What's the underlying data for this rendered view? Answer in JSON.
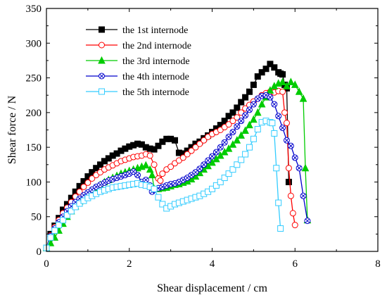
{
  "chart_data": {
    "type": "line",
    "xlabel": "Shear displacement / cm",
    "ylabel": "Shear force / N",
    "xlim": [
      0,
      8
    ],
    "ylim": [
      0,
      350
    ],
    "xticks": [
      0,
      2,
      4,
      6,
      8
    ],
    "yticks": [
      0,
      50,
      100,
      150,
      200,
      250,
      300,
      350
    ],
    "grid": false,
    "legend_position": "top-left",
    "series": [
      {
        "name": "the 1st internode",
        "color": "#000000",
        "marker": "filled-square",
        "x": [
          0.0,
          0.1,
          0.2,
          0.3,
          0.4,
          0.5,
          0.6,
          0.7,
          0.8,
          0.9,
          1.0,
          1.1,
          1.2,
          1.3,
          1.4,
          1.5,
          1.6,
          1.7,
          1.8,
          1.9,
          2.0,
          2.1,
          2.2,
          2.3,
          2.4,
          2.5,
          2.6,
          2.7,
          2.8,
          2.9,
          3.0,
          3.1,
          3.2,
          3.3,
          3.4,
          3.5,
          3.6,
          3.7,
          3.8,
          3.9,
          4.0,
          4.1,
          4.2,
          4.3,
          4.4,
          4.5,
          4.6,
          4.7,
          4.8,
          4.9,
          5.0,
          5.1,
          5.2,
          5.3,
          5.4,
          5.5,
          5.6,
          5.65,
          5.7,
          5.75,
          5.8,
          5.85
        ],
        "values": [
          5,
          25,
          37,
          48,
          60,
          68,
          77,
          86,
          94,
          101,
          108,
          114,
          120,
          125,
          130,
          134,
          138,
          141,
          145,
          148,
          151,
          153,
          155,
          154,
          150,
          148,
          147,
          152,
          158,
          162,
          162,
          160,
          142,
          141,
          145,
          150,
          155,
          158,
          163,
          167,
          172,
          177,
          182,
          188,
          195,
          200,
          207,
          215,
          222,
          230,
          240,
          252,
          258,
          263,
          270,
          265,
          258,
          256,
          255,
          240,
          235,
          100
        ]
      },
      {
        "name": "the 2nd internode",
        "color": "#ff0000",
        "marker": "open-circle",
        "x": [
          0.0,
          0.1,
          0.2,
          0.3,
          0.4,
          0.5,
          0.6,
          0.7,
          0.8,
          0.9,
          1.0,
          1.1,
          1.2,
          1.3,
          1.4,
          1.5,
          1.6,
          1.7,
          1.8,
          1.9,
          2.0,
          2.1,
          2.2,
          2.3,
          2.4,
          2.5,
          2.6,
          2.7,
          2.75,
          2.8,
          2.9,
          3.0,
          3.1,
          3.2,
          3.3,
          3.4,
          3.5,
          3.6,
          3.7,
          3.8,
          3.9,
          4.0,
          4.1,
          4.2,
          4.3,
          4.4,
          4.5,
          4.6,
          4.7,
          4.8,
          4.9,
          5.0,
          5.1,
          5.2,
          5.3,
          5.4,
          5.5,
          5.6,
          5.7,
          5.75,
          5.8,
          5.85,
          5.9,
          5.95,
          6.0
        ],
        "values": [
          5,
          23,
          35,
          45,
          55,
          63,
          71,
          79,
          86,
          93,
          99,
          105,
          110,
          114,
          118,
          121,
          124,
          127,
          130,
          132,
          134,
          136,
          137,
          138,
          140,
          138,
          125,
          105,
          102,
          112,
          118,
          122,
          127,
          131,
          135,
          140,
          145,
          150,
          155,
          160,
          165,
          169,
          172,
          175,
          179,
          183,
          188,
          193,
          200,
          206,
          211,
          216,
          220,
          225,
          228,
          230,
          229,
          231,
          230,
          200,
          185,
          120,
          80,
          55,
          38
        ]
      },
      {
        "name": "the 3rd internode",
        "color": "#00cc00",
        "marker": "filled-triangle",
        "x": [
          0.0,
          0.1,
          0.2,
          0.3,
          0.4,
          0.5,
          0.6,
          0.7,
          0.8,
          0.9,
          1.0,
          1.1,
          1.2,
          1.3,
          1.4,
          1.5,
          1.6,
          1.7,
          1.8,
          1.9,
          2.0,
          2.1,
          2.2,
          2.3,
          2.4,
          2.5,
          2.55,
          2.6,
          2.7,
          2.8,
          2.9,
          3.0,
          3.1,
          3.2,
          3.3,
          3.4,
          3.5,
          3.6,
          3.7,
          3.8,
          3.9,
          4.0,
          4.1,
          4.2,
          4.3,
          4.4,
          4.5,
          4.6,
          4.7,
          4.8,
          4.9,
          5.0,
          5.1,
          5.2,
          5.3,
          5.4,
          5.5,
          5.6,
          5.7,
          5.8,
          5.9,
          6.0,
          6.1,
          6.2,
          6.25,
          6.3
        ],
        "values": [
          5,
          12,
          20,
          30,
          40,
          50,
          58,
          65,
          72,
          78,
          83,
          88,
          92,
          96,
          100,
          103,
          106,
          109,
          112,
          114,
          116,
          118,
          120,
          122,
          124,
          118,
          110,
          90,
          90,
          91,
          92,
          94,
          96,
          97,
          99,
          101,
          104,
          108,
          113,
          118,
          123,
          128,
          133,
          138,
          143,
          148,
          154,
          160,
          167,
          174,
          182,
          190,
          200,
          212,
          222,
          232,
          238,
          242,
          244,
          238,
          244,
          240,
          230,
          220,
          120,
          45
        ]
      },
      {
        "name": "the 4th internode",
        "color": "#0000cc",
        "marker": "crossed-circle",
        "x": [
          0.0,
          0.1,
          0.2,
          0.3,
          0.4,
          0.5,
          0.6,
          0.7,
          0.8,
          0.9,
          1.0,
          1.1,
          1.2,
          1.3,
          1.4,
          1.5,
          1.6,
          1.7,
          1.8,
          1.9,
          2.0,
          2.1,
          2.2,
          2.3,
          2.4,
          2.5,
          2.55,
          2.6,
          2.7,
          2.8,
          2.9,
          3.0,
          3.1,
          3.2,
          3.3,
          3.4,
          3.5,
          3.6,
          3.7,
          3.8,
          3.9,
          4.0,
          4.1,
          4.2,
          4.3,
          4.4,
          4.5,
          4.6,
          4.7,
          4.8,
          4.9,
          5.0,
          5.1,
          5.2,
          5.3,
          5.4,
          5.5,
          5.6,
          5.7,
          5.8,
          5.9,
          6.0,
          6.1,
          6.2,
          6.3
        ],
        "values": [
          5,
          22,
          33,
          42,
          50,
          58,
          65,
          71,
          76,
          81,
          85,
          89,
          93,
          96,
          99,
          102,
          104,
          106,
          108,
          110,
          112,
          115,
          110,
          100,
          103,
          95,
          86,
          89,
          91,
          93,
          95,
          97,
          98,
          100,
          103,
          106,
          110,
          114,
          119,
          125,
          131,
          137,
          143,
          150,
          157,
          165,
          172,
          180,
          188,
          196,
          204,
          212,
          220,
          224,
          225,
          222,
          212,
          195,
          178,
          160,
          152,
          135,
          120,
          80,
          44
        ]
      },
      {
        "name": "the 5th internode",
        "color": "#33ccff",
        "marker": "open-square",
        "x": [
          0.0,
          0.1,
          0.2,
          0.3,
          0.4,
          0.5,
          0.6,
          0.7,
          0.8,
          0.9,
          1.0,
          1.1,
          1.2,
          1.3,
          1.4,
          1.5,
          1.6,
          1.7,
          1.8,
          1.9,
          2.0,
          2.1,
          2.2,
          2.3,
          2.4,
          2.5,
          2.6,
          2.7,
          2.8,
          2.9,
          3.0,
          3.1,
          3.2,
          3.3,
          3.4,
          3.5,
          3.6,
          3.7,
          3.8,
          3.9,
          4.0,
          4.1,
          4.2,
          4.3,
          4.4,
          4.5,
          4.6,
          4.7,
          4.8,
          4.9,
          5.0,
          5.1,
          5.2,
          5.3,
          5.4,
          5.45,
          5.5,
          5.55,
          5.6,
          5.65
        ],
        "values": [
          5,
          20,
          30,
          38,
          45,
          52,
          58,
          64,
          69,
          73,
          77,
          80,
          83,
          86,
          88,
          90,
          92,
          93,
          94,
          95,
          96,
          97,
          98,
          96,
          95,
          93,
          90,
          78,
          68,
          62,
          65,
          68,
          70,
          72,
          74,
          76,
          78,
          80,
          83,
          86,
          90,
          95,
          100,
          106,
          112,
          118,
          125,
          132,
          140,
          150,
          162,
          176,
          186,
          188,
          186,
          185,
          170,
          120,
          70,
          33
        ]
      }
    ]
  }
}
